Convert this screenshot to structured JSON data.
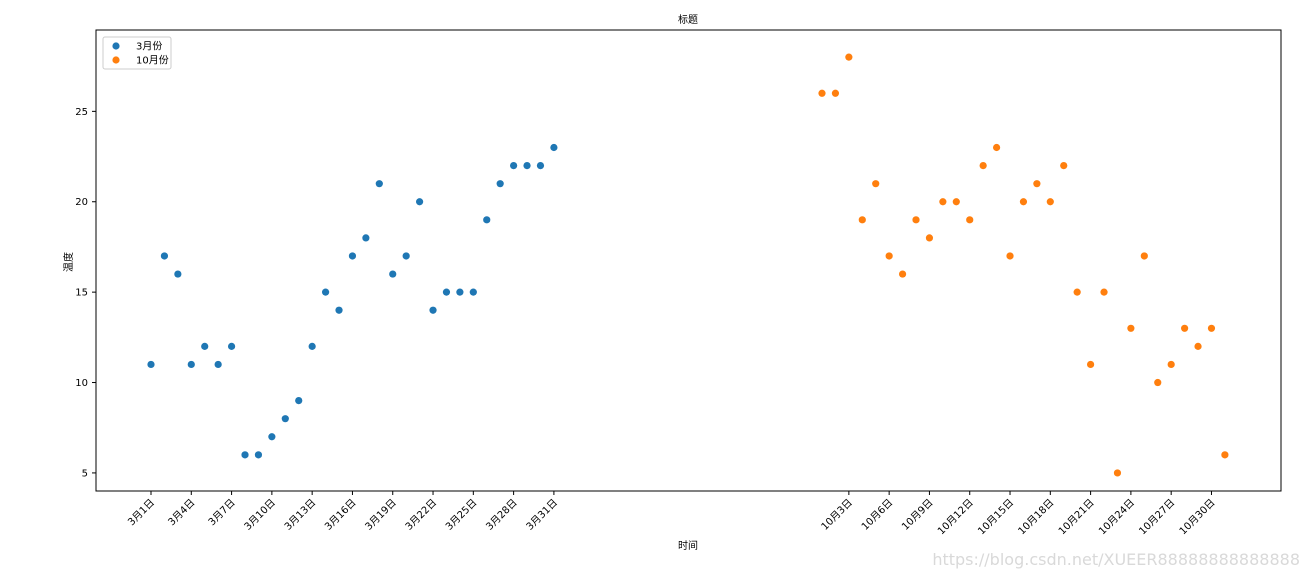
{
  "chart_data": {
    "type": "scatter",
    "title": "标题",
    "xlabel": "时间",
    "ylabel": "温度",
    "ylim": [
      4,
      29.5
    ],
    "yticks": [
      5,
      10,
      15,
      20,
      25
    ],
    "grid": false,
    "legend_position": "top-left",
    "series": [
      {
        "name": "3月份",
        "color": "#1f77b4",
        "x": [
          "3月1日",
          "3月2日",
          "3月3日",
          "3月4日",
          "3月5日",
          "3月6日",
          "3月7日",
          "3月8日",
          "3月9日",
          "3月10日",
          "3月11日",
          "3月12日",
          "3月13日",
          "3月14日",
          "3月15日",
          "3月16日",
          "3月17日",
          "3月18日",
          "3月19日",
          "3月20日",
          "3月21日",
          "3月22日",
          "3月23日",
          "3月24日",
          "3月25日",
          "3月26日",
          "3月27日",
          "3月28日",
          "3月29日",
          "3月30日",
          "3月31日"
        ],
        "y": [
          11,
          17,
          16,
          11,
          12,
          11,
          12,
          6,
          6,
          7,
          8,
          9,
          12,
          15,
          14,
          17,
          18,
          21,
          16,
          17,
          20,
          14,
          15,
          15,
          15,
          19,
          21,
          22,
          22,
          22,
          23
        ]
      },
      {
        "name": "10月份",
        "color": "#ff7f0e",
        "x": [
          "10月1日",
          "10月2日",
          "10月3日",
          "10月4日",
          "10月5日",
          "10月6日",
          "10月7日",
          "10月8日",
          "10月9日",
          "10月10日",
          "10月11日",
          "10月12日",
          "10月13日",
          "10月14日",
          "10月15日",
          "10月16日",
          "10月17日",
          "10月18日",
          "10月19日",
          "10月20日",
          "10月21日",
          "10月22日",
          "10月23日",
          "10月24日",
          "10月25日",
          "10月26日",
          "10月27日",
          "10月28日",
          "10月29日",
          "10月30日",
          "10月31日"
        ],
        "y": [
          26,
          26,
          28,
          19,
          21,
          17,
          16,
          19,
          18,
          20,
          20,
          19,
          22,
          23,
          17,
          20,
          21,
          20,
          22,
          15,
          11,
          15,
          5,
          13,
          17,
          10,
          11,
          13,
          12,
          13,
          6
        ]
      }
    ],
    "xtick_labels": [
      "3月1日",
      "3月4日",
      "3月7日",
      "3月10日",
      "3月13日",
      "3月16日",
      "3月19日",
      "3月22日",
      "3月25日",
      "3月28日",
      "3月31日",
      "10月3日",
      "10月6日",
      "10月9日",
      "10月12日",
      "10月15日",
      "10月18日",
      "10月21日",
      "10月24日",
      "10月27日",
      "10月30日"
    ]
  },
  "watermark": "https://blog.csdn.net/XUEER88888888888888"
}
